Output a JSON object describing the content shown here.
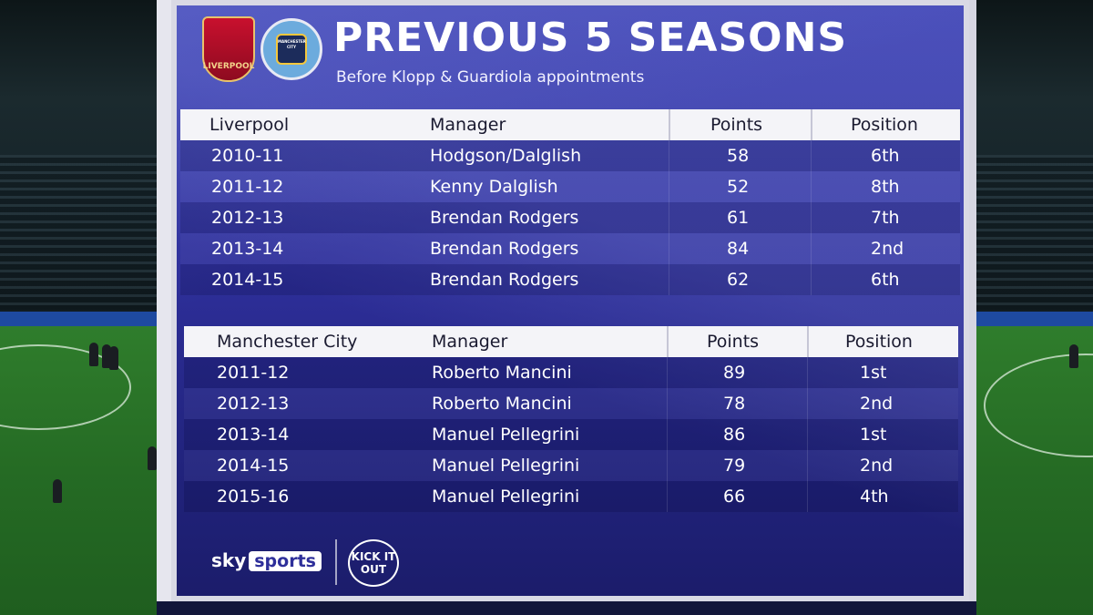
{
  "header": {
    "title": "PREVIOUS 5 SEASONS",
    "subtitle": "Before Klopp & Guardiola appointments",
    "crest_left_text": "LIVERPOOL",
    "crest_right_text": "MANCHESTER CITY"
  },
  "liverpool": {
    "headers": {
      "team": "Liverpool",
      "manager": "Manager",
      "points": "Points",
      "position": "Position"
    },
    "rows": [
      {
        "season": "2010-11",
        "manager": "Hodgson/Dalglish",
        "points": "58",
        "position": "6th"
      },
      {
        "season": "2011-12",
        "manager": "Kenny Dalglish",
        "points": "52",
        "position": "8th"
      },
      {
        "season": "2012-13",
        "manager": "Brendan Rodgers",
        "points": "61",
        "position": "7th"
      },
      {
        "season": "2013-14",
        "manager": "Brendan Rodgers",
        "points": "84",
        "position": "2nd"
      },
      {
        "season": "2014-15",
        "manager": "Brendan Rodgers",
        "points": "62",
        "position": "6th"
      }
    ]
  },
  "mancity": {
    "headers": {
      "team": "Manchester City",
      "manager": "Manager",
      "points": "Points",
      "position": "Position"
    },
    "rows": [
      {
        "season": "2011-12",
        "manager": "Roberto Mancini",
        "points": "89",
        "position": "1st"
      },
      {
        "season": "2012-13",
        "manager": "Roberto Mancini",
        "points": "78",
        "position": "2nd"
      },
      {
        "season": "2013-14",
        "manager": "Manuel Pellegrini",
        "points": "86",
        "position": "1st"
      },
      {
        "season": "2014-15",
        "manager": "Manuel Pellegrini",
        "points": "79",
        "position": "2nd"
      },
      {
        "season": "2015-16",
        "manager": "Manuel Pellegrini",
        "points": "66",
        "position": "4th"
      }
    ]
  },
  "footer": {
    "sky_label": "sky",
    "sports_label": "sports",
    "kickout_label": "KICK IT OUT"
  },
  "colors": {
    "panel_blue": "#2e2f9a",
    "header_row": "#f4f4f8",
    "pitch_green": "#2f7d2c"
  }
}
